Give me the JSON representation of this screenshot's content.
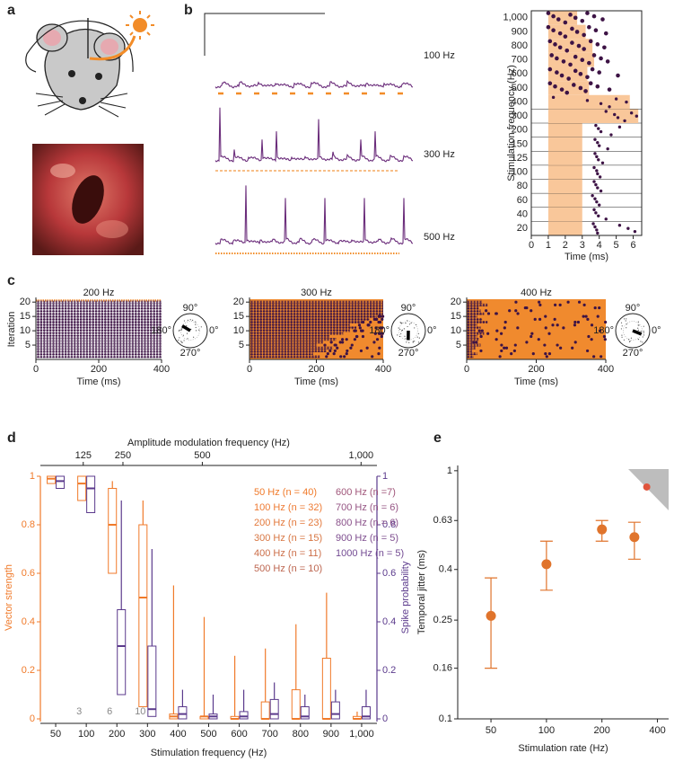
{
  "panel_labels": [
    "a",
    "b",
    "c",
    "d",
    "e"
  ],
  "chart_data": [
    {
      "type": "trace",
      "labels": [
        "100 Hz",
        "300 Hz",
        "500 Hz"
      ],
      "color": "#6b2d7b",
      "stim_color": "#f28c28"
    },
    {
      "type": "raster",
      "ylabel": "Stimulation frequency (Hz)",
      "xlabel": "Time (ms)",
      "xlim": [
        0,
        6.5
      ],
      "xticks": [
        0,
        1,
        2,
        3,
        4,
        5,
        6
      ],
      "stim_color": "#f9c79a",
      "dot_color": "#3d1345",
      "rows": [
        {
          "label": "20",
          "stim": [
            1,
            3
          ],
          "spikes": [
            3.65,
            3.75,
            3.85,
            3.9,
            5.2,
            5.7,
            6.1
          ]
        },
        {
          "label": "40",
          "stim": [
            1,
            3
          ],
          "spikes": [
            3.7,
            3.8,
            3.95,
            4.4
          ]
        },
        {
          "label": "60",
          "stim": [
            1,
            3
          ],
          "spikes": [
            3.6,
            3.75,
            3.85,
            4.0
          ]
        },
        {
          "label": "80",
          "stim": [
            1,
            3
          ],
          "spikes": [
            3.7,
            3.8,
            3.9,
            4.1
          ]
        },
        {
          "label": "100",
          "stim": [
            1,
            3
          ],
          "spikes": [
            3.7,
            3.85,
            3.9,
            4.05
          ]
        },
        {
          "label": "125",
          "stim": [
            1,
            3
          ],
          "spikes": [
            3.75,
            3.85,
            3.95,
            4.2
          ]
        },
        {
          "label": "150",
          "stim": [
            1,
            3
          ],
          "spikes": [
            3.75,
            3.9,
            4.0,
            4.5
          ]
        },
        {
          "label": "200",
          "stim": [
            1,
            3
          ],
          "spikes": [
            3.8,
            3.95,
            4.1,
            4.7,
            5.2
          ]
        },
        {
          "label": "300",
          "stim": [
            1,
            6.3
          ],
          "spikes": [
            4.4,
            4.9,
            5.1,
            5.5,
            5.9,
            6.2
          ]
        },
        {
          "label": "400",
          "stim": [
            1,
            5.8
          ],
          "spikes": [
            1.3,
            3.3,
            4.1,
            4.6,
            5.0,
            5.6
          ]
        },
        {
          "label": "500",
          "stim": [
            1,
            3.4
          ],
          "spikes": [
            1.1,
            1.4,
            1.8,
            2.1,
            2.5,
            2.9,
            3.2,
            3.5,
            3.9,
            4.6
          ]
        },
        {
          "label": "600",
          "stim": [
            1,
            3.3
          ],
          "spikes": [
            1.1,
            1.5,
            1.8,
            2.2,
            2.6,
            2.9,
            3.3,
            3.6,
            4.0,
            5.1
          ]
        },
        {
          "label": "700",
          "stim": [
            1,
            3.7
          ],
          "spikes": [
            1.2,
            1.5,
            1.9,
            2.3,
            2.6,
            3.0,
            3.4,
            3.7,
            4.1,
            4.5
          ]
        },
        {
          "label": "800",
          "stim": [
            1,
            3.6
          ],
          "spikes": [
            1.1,
            1.4,
            1.7,
            2.1,
            2.4,
            2.8,
            3.1,
            3.5,
            3.9,
            4.3
          ]
        },
        {
          "label": "900",
          "stim": [
            1,
            3.2
          ],
          "spikes": [
            1.0,
            1.3,
            1.7,
            2.0,
            2.4,
            2.7,
            3.1,
            3.4,
            3.8,
            4.4
          ]
        },
        {
          "label": "1,000",
          "stim": [
            1,
            2.7
          ],
          "spikes": [
            1.0,
            1.3,
            1.6,
            2.0,
            2.3,
            2.6,
            3.0,
            3.3,
            3.7,
            4.2
          ]
        }
      ]
    },
    {
      "type": "raster_follow",
      "title": "200 Hz",
      "ylabel": "Iteration",
      "xlabel": "Time (ms)",
      "xlim": [
        0,
        400
      ],
      "xticks": [
        0,
        200,
        400
      ],
      "ylim": [
        0,
        21
      ],
      "yticks": [
        5,
        10,
        15,
        20
      ],
      "background": "#ffffff",
      "stim_color": "#f08a2e",
      "follow_ms": [
        400,
        400,
        400,
        400,
        400,
        400,
        400,
        400,
        400,
        400,
        400,
        400,
        400,
        400,
        400,
        400,
        400,
        400,
        400,
        400
      ],
      "polar_labels": [
        "90°",
        "180°",
        "0°",
        "270°"
      ]
    },
    {
      "type": "raster_follow",
      "title": "300 Hz",
      "xlabel": "Time (ms)",
      "xlim": [
        0,
        400
      ],
      "xticks": [
        0,
        200,
        400
      ],
      "ylim": [
        0,
        21
      ],
      "yticks": [
        5,
        10,
        15,
        20
      ],
      "background": "#f08a2e",
      "stim_color": "#f08a2e",
      "follow_ms": [
        210,
        190,
        230,
        250,
        200,
        220,
        260,
        240,
        280,
        300,
        320,
        300,
        340,
        360,
        380,
        400,
        400,
        400,
        400,
        400
      ],
      "polar_labels": [
        "90°",
        "180°",
        "0°",
        "270°"
      ]
    },
    {
      "type": "raster_follow",
      "title": "400 Hz",
      "xlabel": "Time (ms)",
      "xlim": [
        0,
        400
      ],
      "xticks": [
        0,
        200,
        400
      ],
      "ylim": [
        0,
        21
      ],
      "yticks": [
        5,
        10,
        15,
        20
      ],
      "background": "#f08a2e",
      "stim_color": "#f08a2e",
      "follow_ms": [
        20,
        30,
        15,
        25,
        40,
        20,
        35,
        30,
        50,
        25,
        40,
        30,
        60,
        45,
        30,
        50,
        40,
        35,
        60,
        45
      ],
      "polar_labels": [
        "90°",
        "180°",
        "0°",
        "270°"
      ]
    },
    {
      "type": "box",
      "xlabel": "Stimulation frequency (Hz)",
      "ylabel": "Vector strength",
      "y2label": "Spike probability",
      "x2label": "Amplitude modulation frequency (Hz)",
      "categories": [
        "50",
        "100",
        "200",
        "300",
        "400",
        "500",
        "600",
        "700",
        "800",
        "900",
        "1,000"
      ],
      "ylim": [
        0,
        1
      ],
      "yticks": [
        0,
        0.2,
        0.4,
        0.6,
        0.8,
        1
      ],
      "y2lim": [
        0,
        1
      ],
      "y2ticks": [
        0,
        0.2,
        0.4,
        0.6,
        0.8,
        1
      ],
      "x2lim": [
        -10,
        1050
      ],
      "x2ticks": [
        125,
        250,
        500,
        {
          "value": 1000,
          "label": "1,000"
        }
      ],
      "series": [
        {
          "color": "#f07a2a",
          "axis": "y",
          "median": [
            0.99,
            0.97,
            0.8,
            0.5,
            0.01,
            0.01,
            0,
            0,
            0,
            0,
            0
          ],
          "q1": [
            0.97,
            0.9,
            0.6,
            0.05,
            0,
            0,
            0,
            0,
            0,
            0,
            0
          ],
          "q3": [
            1.0,
            1.0,
            0.95,
            0.8,
            0.02,
            0.01,
            0.01,
            0.07,
            0.12,
            0.25,
            0.01
          ],
          "max": [
            1.0,
            1.0,
            0.98,
            0.9,
            0.55,
            0.42,
            0.26,
            0.29,
            0.39,
            0.52,
            0.03
          ]
        },
        {
          "color": "#5b3a8c",
          "axis": "y2",
          "median": [
            0.98,
            0.95,
            0.3,
            0.04,
            0.02,
            0.01,
            0.01,
            0.02,
            0.01,
            0.02,
            0.01
          ],
          "q1": [
            0.95,
            0.85,
            0.1,
            0.01,
            0,
            0,
            0,
            0,
            0,
            0,
            0
          ],
          "q3": [
            1.0,
            1.0,
            0.45,
            0.3,
            0.05,
            0.02,
            0.03,
            0.08,
            0.05,
            0.07,
            0.05
          ],
          "max": [
            1.0,
            1.0,
            0.9,
            0.7,
            0.12,
            0.1,
            0.12,
            0.15,
            0.1,
            0.12,
            0.12
          ]
        }
      ],
      "annotations": [
        {
          "text": "3",
          "category": 1
        },
        {
          "text": "6",
          "category": 2
        },
        {
          "text": "10",
          "category": 3
        }
      ],
      "legend": [
        {
          "label": "50 Hz (n = 40)",
          "color": "#f07a2a"
        },
        {
          "label": "100 Hz (n = 32)",
          "color": "#ee7a33"
        },
        {
          "label": "200 Hz (n = 23)",
          "color": "#e3793c"
        },
        {
          "label": "300 Hz (n = 15)",
          "color": "#d87744"
        },
        {
          "label": "400 Hz (n = 11)",
          "color": "#cc6f4a"
        },
        {
          "label": "500 Hz (n = 10)",
          "color": "#bd6650"
        },
        {
          "label": "600 Hz (n =7)",
          "color": "#a0567a"
        },
        {
          "label": "700 Hz (n = 6)",
          "color": "#955483"
        },
        {
          "label": "800 Hz (n = 6)",
          "color": "#8a518a"
        },
        {
          "label": "900 Hz (n = 5)",
          "color": "#7e4e8f"
        },
        {
          "label": "1000 Hz (n = 5)",
          "color": "#734b93"
        }
      ]
    },
    {
      "type": "errorbar",
      "xlabel": "Stimulation rate (Hz)",
      "ylabel": "Temporal jitter (ms)",
      "xscale": "log",
      "yscale": "log",
      "xlim": [
        33,
        460
      ],
      "ylim": [
        0.1,
        1.05
      ],
      "xticks": [
        50,
        100,
        200,
        400
      ],
      "yticks": [
        0.1,
        0.16,
        0.25,
        0.4,
        0.63,
        1
      ],
      "x": [
        50,
        100,
        200,
        300,
        350
      ],
      "values": [
        0.26,
        0.42,
        0.58,
        0.54,
        0.86
      ],
      "err_low": [
        0.16,
        0.33,
        0.52,
        0.44,
        null
      ],
      "err_high": [
        0.37,
        0.52,
        0.63,
        0.62,
        null
      ],
      "colors": [
        "#e0742c",
        "#e0742c",
        "#e0742c",
        "#e0742c",
        "#e0543c"
      ]
    }
  ]
}
